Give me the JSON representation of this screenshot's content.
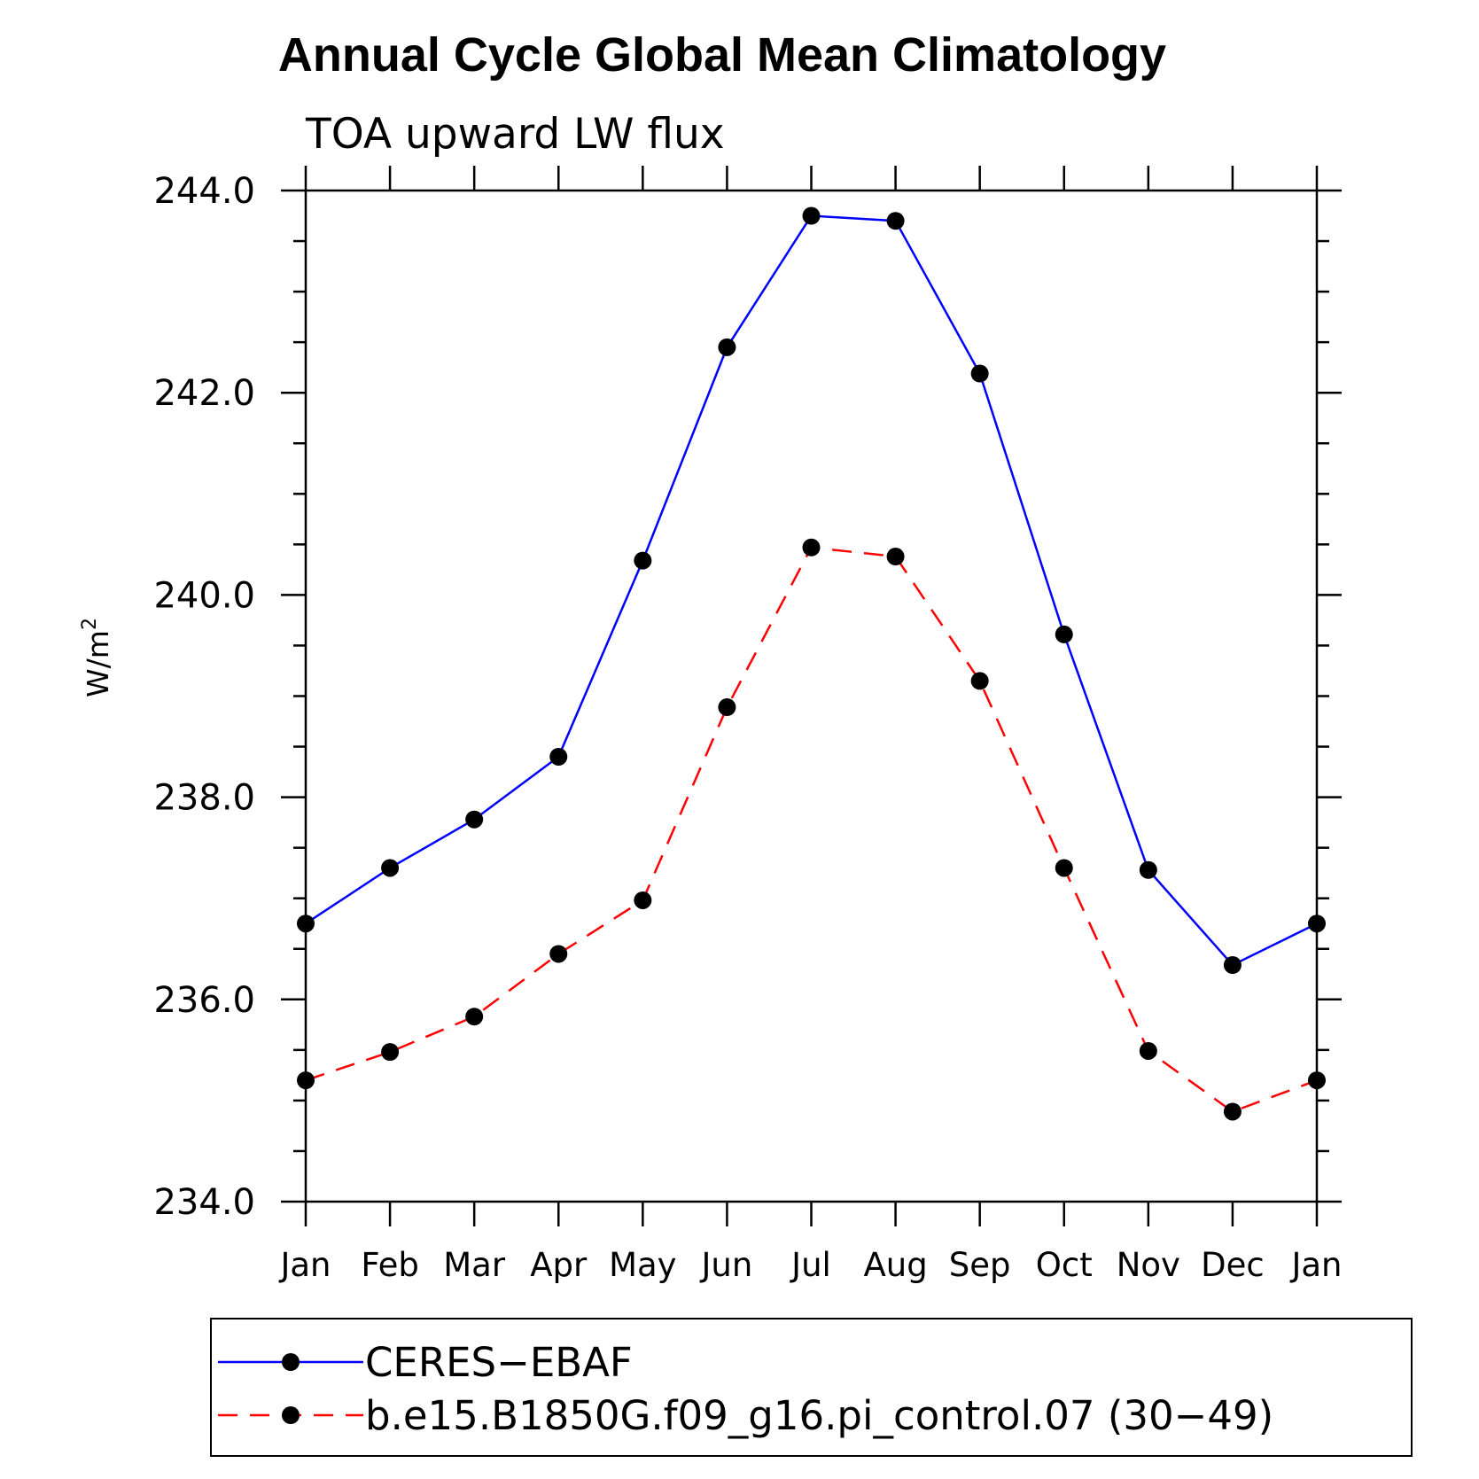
{
  "chart_data": {
    "type": "line",
    "title": "Annual Cycle Global Mean Climatology",
    "subtitle": "TOA upward LW flux",
    "xlabel": "",
    "ylabel": "W/m",
    "ylabel_sup": "2",
    "categories": [
      "Jan",
      "Feb",
      "Mar",
      "Apr",
      "May",
      "Jun",
      "Jul",
      "Aug",
      "Sep",
      "Oct",
      "Nov",
      "Dec",
      "Jan"
    ],
    "ylim": [
      234.0,
      244.0
    ],
    "yticks": [
      "234.0",
      "236.0",
      "238.0",
      "240.0",
      "242.0",
      "244.0"
    ],
    "grid": false,
    "legend_position": "bottom",
    "series": [
      {
        "name": "CERES−EBAF",
        "color": "#0000ff",
        "dash": "solid",
        "marker": "circle",
        "values": [
          236.75,
          237.3,
          237.78,
          238.4,
          240.34,
          242.45,
          243.75,
          243.7,
          242.19,
          239.61,
          237.28,
          236.34,
          236.75
        ]
      },
      {
        "name": "b.e15.B1850G.f09_g16.pi_control.07 (30−49)",
        "color": "#ff0000",
        "dash": "dashed",
        "marker": "circle",
        "values": [
          235.2,
          235.48,
          235.83,
          236.45,
          236.98,
          238.89,
          240.47,
          240.38,
          239.15,
          237.3,
          235.49,
          234.89,
          235.2
        ]
      }
    ]
  }
}
